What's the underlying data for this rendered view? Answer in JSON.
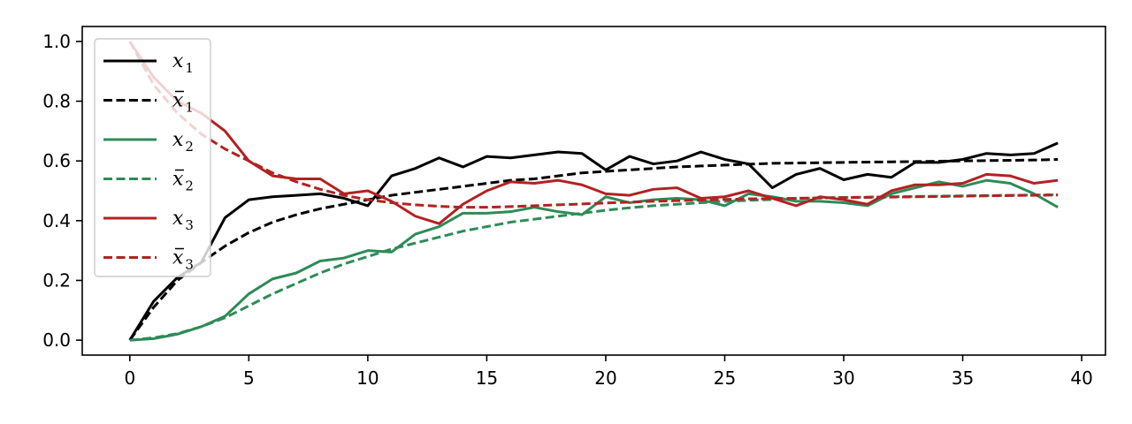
{
  "chart_data": {
    "type": "line",
    "title": "",
    "xlabel": "",
    "ylabel": "",
    "xlim": [
      -2,
      41
    ],
    "ylim": [
      -0.05,
      1.05
    ],
    "xticks": [
      0,
      5,
      10,
      15,
      20,
      25,
      30,
      35,
      40
    ],
    "xtick_labels": [
      "0",
      "5",
      "10",
      "15",
      "20",
      "25",
      "30",
      "35",
      "40"
    ],
    "yticks": [
      0.0,
      0.2,
      0.4,
      0.6,
      0.8,
      1.0
    ],
    "ytick_labels": [
      "0.0",
      "0.2",
      "0.4",
      "0.6",
      "0.8",
      "1.0"
    ],
    "grid": false,
    "legend_position": "top-left",
    "x": [
      0,
      1,
      2,
      3,
      4,
      5,
      6,
      7,
      8,
      9,
      10,
      11,
      12,
      13,
      14,
      15,
      16,
      17,
      18,
      19,
      20,
      21,
      22,
      23,
      24,
      25,
      26,
      27,
      28,
      29,
      30,
      31,
      32,
      33,
      34,
      35,
      36,
      37,
      38,
      39
    ],
    "series": [
      {
        "name": "x",
        "subscript": "1",
        "bar": false,
        "color": "#000000",
        "dash": "solid",
        "values": [
          0.0,
          0.13,
          0.21,
          0.26,
          0.41,
          0.47,
          0.48,
          0.485,
          0.49,
          0.475,
          0.45,
          0.55,
          0.575,
          0.61,
          0.58,
          0.615,
          0.61,
          0.62,
          0.63,
          0.625,
          0.57,
          0.615,
          0.59,
          0.6,
          0.63,
          0.605,
          0.59,
          0.51,
          0.555,
          0.575,
          0.537,
          0.555,
          0.545,
          0.595,
          0.595,
          0.605,
          0.625,
          0.62,
          0.625,
          0.66
        ]
      },
      {
        "name": "x",
        "subscript": "1",
        "bar": true,
        "color": "#000000",
        "dash": "dashed",
        "values": [
          0.0,
          0.11,
          0.2,
          0.26,
          0.315,
          0.36,
          0.395,
          0.42,
          0.44,
          0.455,
          0.47,
          0.485,
          0.495,
          0.505,
          0.515,
          0.525,
          0.535,
          0.54,
          0.55,
          0.56,
          0.565,
          0.57,
          0.575,
          0.58,
          0.583,
          0.586,
          0.589,
          0.592,
          0.593,
          0.594,
          0.595,
          0.596,
          0.597,
          0.598,
          0.599,
          0.6,
          0.601,
          0.602,
          0.603,
          0.605
        ]
      },
      {
        "name": "x",
        "subscript": "2",
        "bar": false,
        "color": "#2e8b57",
        "dash": "solid",
        "values": [
          0.0,
          0.005,
          0.02,
          0.045,
          0.08,
          0.155,
          0.205,
          0.225,
          0.265,
          0.275,
          0.3,
          0.295,
          0.355,
          0.38,
          0.425,
          0.425,
          0.43,
          0.445,
          0.43,
          0.42,
          0.48,
          0.46,
          0.47,
          0.475,
          0.47,
          0.45,
          0.49,
          0.48,
          0.465,
          0.465,
          0.46,
          0.45,
          0.49,
          0.51,
          0.53,
          0.515,
          0.535,
          0.525,
          0.49,
          0.445
        ]
      },
      {
        "name": "x",
        "subscript": "2",
        "bar": true,
        "color": "#2e8b57",
        "dash": "dashed",
        "values": [
          0.0,
          0.008,
          0.022,
          0.045,
          0.075,
          0.115,
          0.155,
          0.19,
          0.225,
          0.255,
          0.28,
          0.305,
          0.325,
          0.345,
          0.365,
          0.38,
          0.395,
          0.405,
          0.415,
          0.425,
          0.435,
          0.443,
          0.45,
          0.455,
          0.46,
          0.465,
          0.468,
          0.471,
          0.474,
          0.476,
          0.478,
          0.479,
          0.48,
          0.481,
          0.482,
          0.483,
          0.484,
          0.485,
          0.486,
          0.487
        ]
      },
      {
        "name": "x",
        "subscript": "3",
        "bar": false,
        "color": "#b22222",
        "dash": "solid",
        "values": [
          1.0,
          0.88,
          0.8,
          0.76,
          0.7,
          0.6,
          0.55,
          0.54,
          0.54,
          0.49,
          0.5,
          0.465,
          0.415,
          0.39,
          0.455,
          0.5,
          0.53,
          0.525,
          0.535,
          0.52,
          0.49,
          0.485,
          0.505,
          0.51,
          0.475,
          0.48,
          0.5,
          0.475,
          0.45,
          0.48,
          0.47,
          0.455,
          0.5,
          0.52,
          0.52,
          0.525,
          0.555,
          0.55,
          0.525,
          0.535
        ]
      },
      {
        "name": "x",
        "subscript": "3",
        "bar": true,
        "color": "#b22222",
        "dash": "dashed",
        "values": [
          1.0,
          0.855,
          0.76,
          0.69,
          0.64,
          0.6,
          0.56,
          0.53,
          0.505,
          0.485,
          0.47,
          0.46,
          0.453,
          0.448,
          0.445,
          0.445,
          0.447,
          0.45,
          0.453,
          0.456,
          0.459,
          0.462,
          0.465,
          0.467,
          0.469,
          0.471,
          0.473,
          0.474,
          0.475,
          0.476,
          0.477,
          0.478,
          0.479,
          0.48,
          0.481,
          0.482,
          0.483,
          0.484,
          0.485,
          0.486
        ]
      }
    ]
  }
}
